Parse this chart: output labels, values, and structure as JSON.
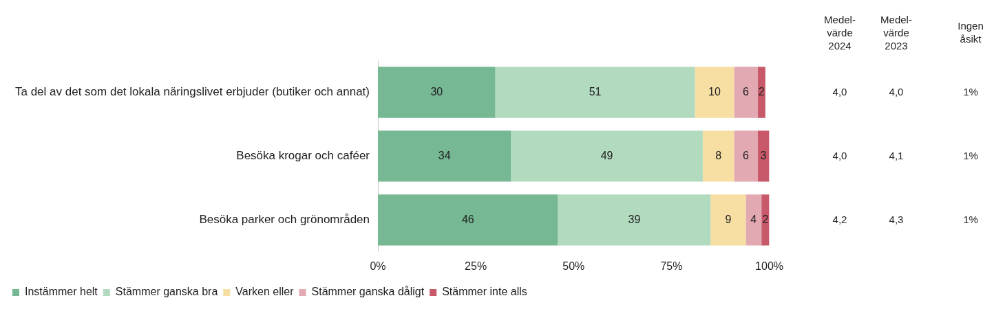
{
  "chart_data": {
    "type": "bar",
    "orientation": "horizontal",
    "stacked": true,
    "data_labels": true,
    "legend": "bottom left",
    "grid": false,
    "categories": [
      "Ta del av det som det lokala näringslivet erbjuder (butiker och annat)",
      "Besöka krogar och caféer",
      "Besöka parker och grönområden"
    ],
    "series": [
      {
        "name": "Instämmer helt",
        "color": "#76b893",
        "values": [
          30,
          34,
          46
        ]
      },
      {
        "name": "Stämmer ganska bra",
        "color": "#b2dabf",
        "values": [
          51,
          49,
          39
        ]
      },
      {
        "name": "Varken eller",
        "color": "#f7dfa3",
        "values": [
          10,
          8,
          9
        ]
      },
      {
        "name": "Stämmer ganska dåligt",
        "color": "#e2a9b2",
        "values": [
          6,
          6,
          4
        ]
      },
      {
        "name": "Stämmer inte alls",
        "color": "#c8596b",
        "values": [
          2,
          3,
          2
        ]
      }
    ],
    "xlim": [
      0,
      100
    ],
    "xticks": [
      {
        "value": 0,
        "label": "0%"
      },
      {
        "value": 25,
        "label": "25%"
      },
      {
        "value": 50,
        "label": "50%"
      },
      {
        "value": 75,
        "label": "75%"
      },
      {
        "value": 100,
        "label": "100%"
      }
    ],
    "annotations": [
      "Medel-\nvärde\n2024",
      "Medel-\nvärde\n2023",
      "Ingen\nåsikt",
      "4,0",
      "4,0",
      "1%",
      "4,0",
      "4,1",
      "1%",
      "4,2",
      "4,3",
      "1%"
    ]
  }
}
